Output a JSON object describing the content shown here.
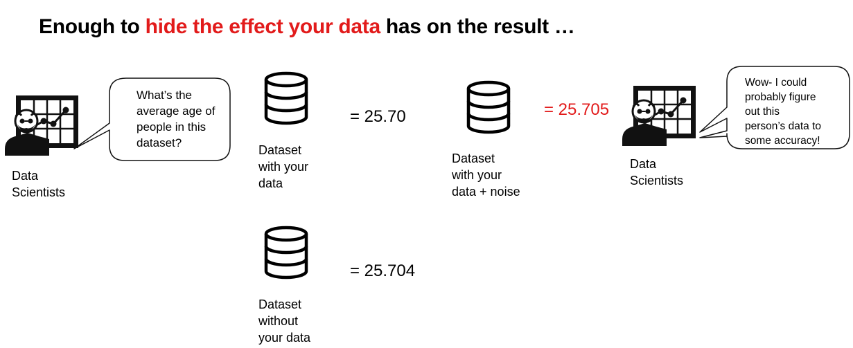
{
  "title": {
    "prefix": "Enough to ",
    "highlight": "hide the effect your data",
    "suffix": " has on the result …",
    "highlight_color": "#e21b1b"
  },
  "left_scientist": {
    "label": "Data\nScientists",
    "icon": "data-scientist-icon",
    "bubble": "What’s the\naverage age of\npeople in this\ndataset?"
  },
  "right_scientist": {
    "label": "Data\nScientists",
    "icon": "data-scientist-icon",
    "bubble": "Wow- I could\nprobably figure\nout this\nperson’s data to\nsome accuracy!"
  },
  "datasets": [
    {
      "label": "Dataset\nwith your\ndata",
      "result": "= 25.70",
      "icon": "database-icon"
    },
    {
      "label": "Dataset\nwithout\nyour data",
      "result": "= 25.704",
      "icon": "database-icon"
    },
    {
      "label": "Dataset\nwith your\ndata + noise",
      "result": "= 25.705",
      "icon": "database-icon",
      "result_color": "#e21b1b"
    }
  ]
}
